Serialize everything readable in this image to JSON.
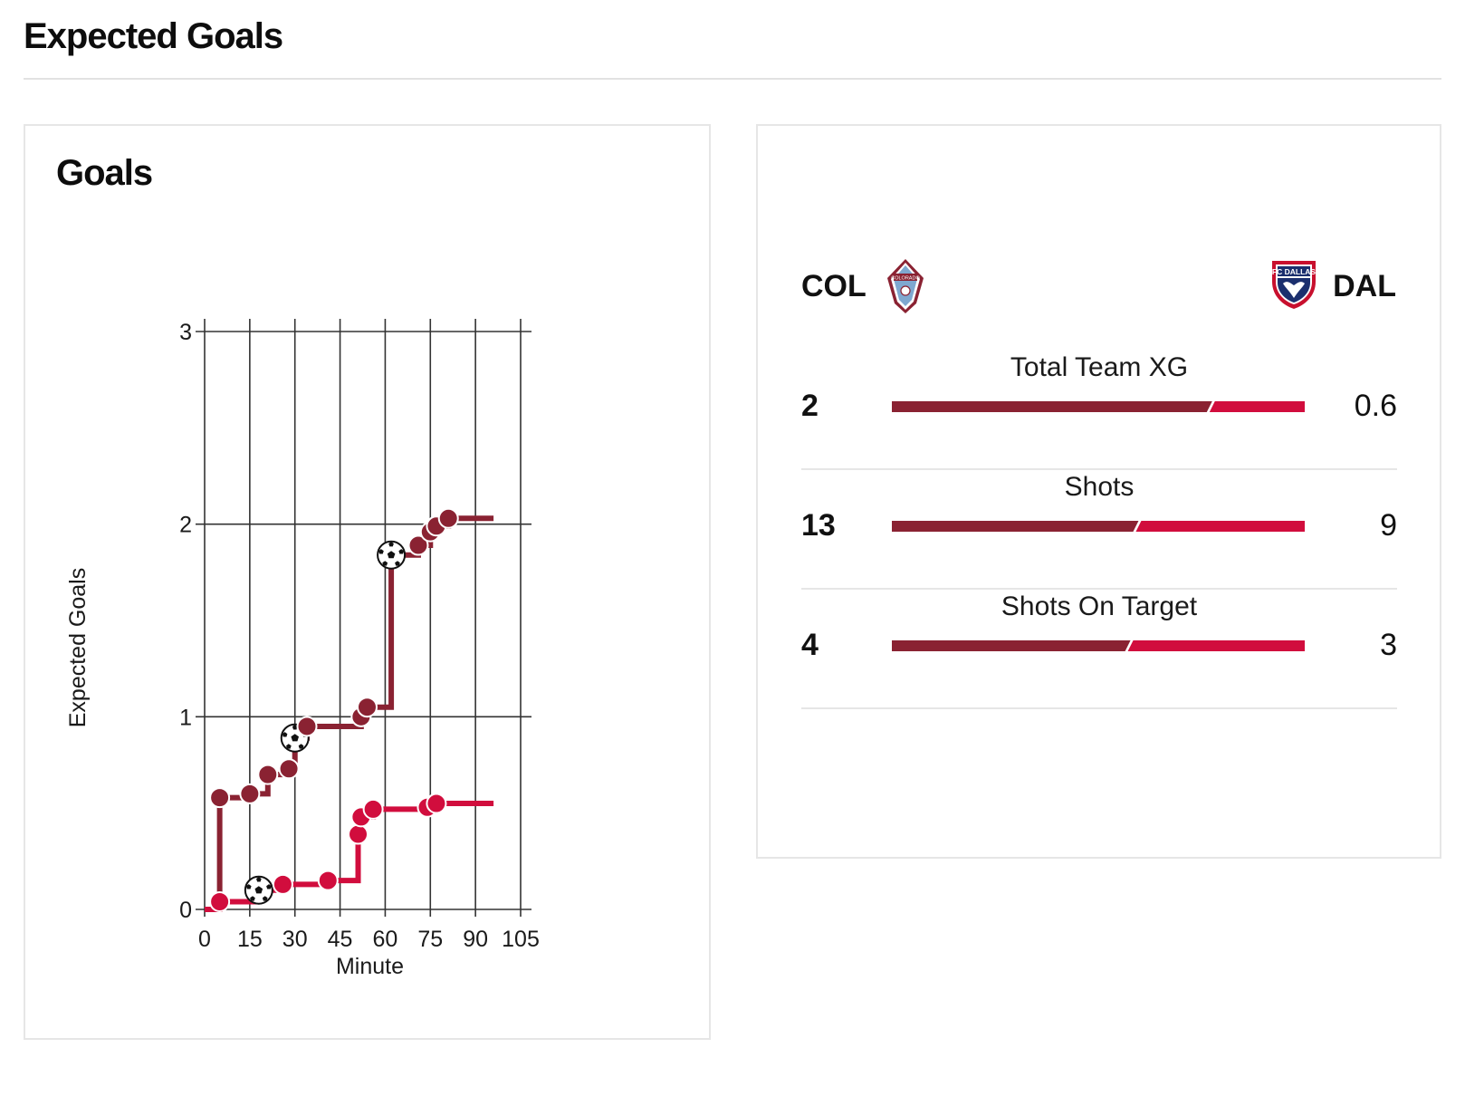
{
  "page": {
    "title": "Expected Goals"
  },
  "colors": {
    "home": "#8a2232",
    "away": "#d10d3d",
    "grid": "#333333",
    "rule": "#e2e2e2"
  },
  "chart_card": {
    "heading": "Goals"
  },
  "chart_data": {
    "type": "line",
    "step": true,
    "title": "Goals",
    "xlabel": "Minute",
    "ylabel": "Expected Goals",
    "xlim": [
      0,
      105
    ],
    "ylim": [
      0,
      3
    ],
    "xticks": [
      0,
      15,
      30,
      45,
      60,
      75,
      90,
      105
    ],
    "yticks": [
      0,
      1,
      2,
      3
    ],
    "grid": true,
    "series": [
      {
        "name": "COL",
        "color": "#8a2232",
        "end_minute": 96,
        "points": [
          {
            "minute": 0,
            "xg": 0.0,
            "shot": false,
            "goal": false
          },
          {
            "minute": 5,
            "xg": 0.58,
            "shot": true,
            "goal": false
          },
          {
            "minute": 15,
            "xg": 0.6,
            "shot": true,
            "goal": false
          },
          {
            "minute": 21,
            "xg": 0.7,
            "shot": true,
            "goal": false
          },
          {
            "minute": 28,
            "xg": 0.73,
            "shot": true,
            "goal": false
          },
          {
            "minute": 30,
            "xg": 0.89,
            "shot": true,
            "goal": true
          },
          {
            "minute": 34,
            "xg": 0.95,
            "shot": true,
            "goal": false
          },
          {
            "minute": 52,
            "xg": 1.0,
            "shot": true,
            "goal": false
          },
          {
            "minute": 54,
            "xg": 1.05,
            "shot": true,
            "goal": false
          },
          {
            "minute": 62,
            "xg": 1.84,
            "shot": true,
            "goal": true
          },
          {
            "minute": 71,
            "xg": 1.89,
            "shot": true,
            "goal": false
          },
          {
            "minute": 75,
            "xg": 1.96,
            "shot": true,
            "goal": false
          },
          {
            "minute": 77,
            "xg": 1.99,
            "shot": true,
            "goal": false
          },
          {
            "minute": 81,
            "xg": 2.03,
            "shot": true,
            "goal": false
          }
        ]
      },
      {
        "name": "DAL",
        "color": "#d10d3d",
        "end_minute": 96,
        "points": [
          {
            "minute": 0,
            "xg": 0.0,
            "shot": false,
            "goal": false
          },
          {
            "minute": 5,
            "xg": 0.04,
            "shot": true,
            "goal": false
          },
          {
            "minute": 18,
            "xg": 0.1,
            "shot": true,
            "goal": true
          },
          {
            "minute": 26,
            "xg": 0.13,
            "shot": true,
            "goal": false
          },
          {
            "minute": 41,
            "xg": 0.15,
            "shot": true,
            "goal": false
          },
          {
            "minute": 51,
            "xg": 0.39,
            "shot": true,
            "goal": false
          },
          {
            "minute": 52,
            "xg": 0.48,
            "shot": true,
            "goal": false
          },
          {
            "minute": 56,
            "xg": 0.52,
            "shot": true,
            "goal": false
          },
          {
            "minute": 74,
            "xg": 0.53,
            "shot": true,
            "goal": false
          },
          {
            "minute": 77,
            "xg": 0.55,
            "shot": true,
            "goal": false
          }
        ]
      }
    ]
  },
  "stats": {
    "home_team": "COL",
    "away_team": "DAL",
    "home_crest_icon": "colorado-rapids-crest",
    "away_crest_icon": "fc-dallas-crest",
    "rows": [
      {
        "label": "Total Team XG",
        "home": "2",
        "away": "0.6",
        "home_value": 2.0,
        "away_value": 0.6
      },
      {
        "label": "Shots",
        "home": "13",
        "away": "9",
        "home_value": 13,
        "away_value": 9
      },
      {
        "label": "Shots On Target",
        "home": "4",
        "away": "3",
        "home_value": 4,
        "away_value": 3
      }
    ]
  }
}
